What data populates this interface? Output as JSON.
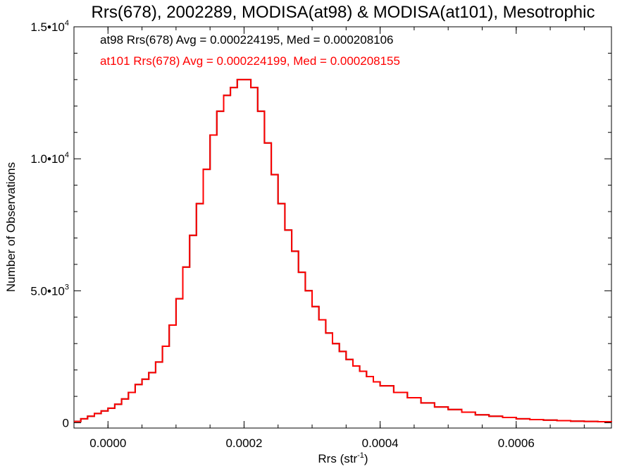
{
  "chart_data": {
    "type": "line",
    "title": "Rrs(678), 2002289, MODISA(at98) & MODISA(at101), Mesotrophic",
    "xlabel": {
      "base": "Rrs (str",
      "sup": "-1",
      "close": ")"
    },
    "ylabel": "Number of Observations",
    "xlim": [
      -5e-05,
      0.00074
    ],
    "ylim": [
      -200,
      15000
    ],
    "x_ticks": [
      {
        "value": 0.0,
        "label": "0.0000"
      },
      {
        "value": 0.0002,
        "label": "0.0002"
      },
      {
        "value": 0.0004,
        "label": "0.0004"
      },
      {
        "value": 0.0006,
        "label": "0.0006"
      }
    ],
    "y_ticks": [
      {
        "value": 0,
        "mantissa": "0",
        "exp": ""
      },
      {
        "value": 5000,
        "mantissa": "5.0•10",
        "exp": "3"
      },
      {
        "value": 10000,
        "mantissa": "1.0•10",
        "exp": "4"
      },
      {
        "value": 15000,
        "mantissa": "1.5•10",
        "exp": "4"
      }
    ],
    "annotations": [
      {
        "text": "at98 Rrs(678) Avg = 0.000224195, Med = 0.000208106",
        "color": "#000000"
      },
      {
        "text": "at101 Rrs(678) Avg = 0.000224199, Med = 0.000208155",
        "color": "#ff0000"
      }
    ],
    "x": [
      -5e-05,
      -4e-05,
      -3e-05,
      -2e-05,
      -1e-05,
      0.0,
      1e-05,
      2e-05,
      3e-05,
      4e-05,
      5e-05,
      6e-05,
      7e-05,
      8e-05,
      9e-05,
      0.0001,
      0.00011,
      0.00012,
      0.00013,
      0.00014,
      0.00015,
      0.00016,
      0.00017,
      0.00018,
      0.00019,
      0.0002,
      0.00021,
      0.00022,
      0.00023,
      0.00024,
      0.00025,
      0.00026,
      0.00027,
      0.00028,
      0.00029,
      0.0003,
      0.00031,
      0.00032,
      0.00033,
      0.00034,
      0.00035,
      0.00036,
      0.00037,
      0.00038,
      0.00039,
      0.0004,
      0.00042,
      0.00044,
      0.00046,
      0.00048,
      0.0005,
      0.00052,
      0.00054,
      0.00056,
      0.00058,
      0.0006,
      0.00062,
      0.00064,
      0.00066,
      0.00068,
      0.0007,
      0.00072,
      0.00074
    ],
    "series": [
      {
        "name": "at98",
        "color": "#000000",
        "values": [
          50,
          150,
          250,
          350,
          450,
          550,
          700,
          900,
          1150,
          1450,
          1650,
          1900,
          2300,
          2900,
          3700,
          4700,
          5900,
          7100,
          8300,
          9600,
          10900,
          11800,
          12400,
          12700,
          13000,
          13000,
          12700,
          11800,
          10600,
          9400,
          8300,
          7300,
          6500,
          5700,
          5000,
          4400,
          3900,
          3400,
          3000,
          2700,
          2400,
          2150,
          1950,
          1750,
          1550,
          1400,
          1150,
          950,
          750,
          600,
          500,
          400,
          300,
          250,
          200,
          150,
          120,
          100,
          80,
          60,
          50,
          40,
          30
        ]
      },
      {
        "name": "at101",
        "color": "#ff0000",
        "values": [
          50,
          150,
          250,
          350,
          450,
          550,
          700,
          900,
          1150,
          1450,
          1650,
          1900,
          2300,
          2900,
          3700,
          4700,
          5900,
          7100,
          8300,
          9600,
          10900,
          11800,
          12400,
          12700,
          13000,
          13000,
          12700,
          11800,
          10600,
          9400,
          8300,
          7300,
          6500,
          5700,
          5000,
          4400,
          3900,
          3400,
          3000,
          2700,
          2400,
          2150,
          1950,
          1750,
          1550,
          1400,
          1150,
          950,
          750,
          600,
          500,
          400,
          300,
          250,
          200,
          150,
          120,
          100,
          80,
          60,
          50,
          40,
          30
        ]
      }
    ]
  }
}
